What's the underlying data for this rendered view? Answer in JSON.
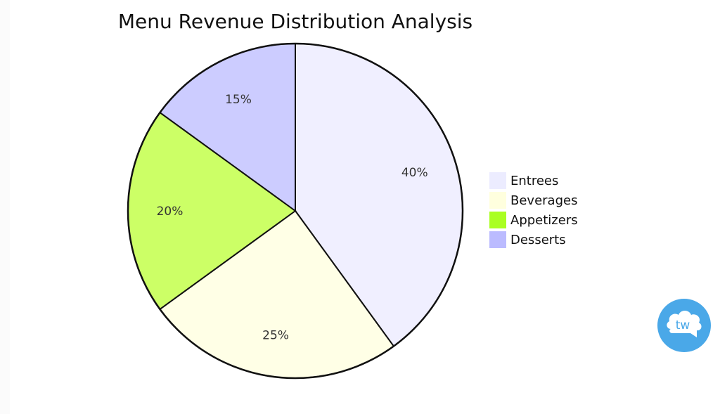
{
  "chart_data": {
    "type": "pie",
    "title": "Menu Revenue Distribution Analysis",
    "slices": [
      {
        "name": "Entrees",
        "value": 40,
        "label": "40%",
        "color": "#f0efff"
      },
      {
        "name": "Beverages",
        "value": 25,
        "label": "25%",
        "color": "#ffffe6"
      },
      {
        "name": "Appetizers",
        "value": 20,
        "label": "20%",
        "color": "#ccff66"
      },
      {
        "name": "Desserts",
        "value": 15,
        "label": "15%",
        "color": "#ccccff"
      }
    ],
    "legend_placement": "right",
    "legend": [
      {
        "name": "Entrees",
        "color": "#ececff"
      },
      {
        "name": "Beverages",
        "color": "#ffffde"
      },
      {
        "name": "Appetizers",
        "color": "#aaff22"
      },
      {
        "name": "Desserts",
        "color": "#bbbbff"
      }
    ]
  },
  "badge": {
    "text": "tw",
    "icon": "brand-badge-icon",
    "color": "#4aa8e8"
  }
}
